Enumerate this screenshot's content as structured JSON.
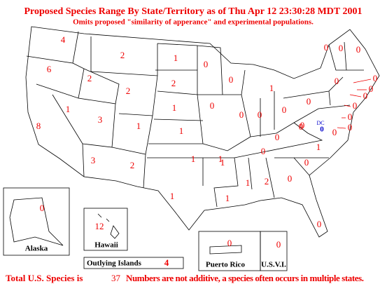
{
  "title": "Proposed Species Range By State/Territory as of Thu Apr 12 23:30:28 MDT 2001",
  "subtitle": "Omits proposed \"similarity of apperance\" and experimental populations.",
  "states": [
    4,
    6,
    2,
    2,
    2,
    1,
    2,
    0,
    0,
    1,
    1,
    8,
    3,
    1,
    1,
    1,
    0,
    0,
    0,
    0,
    1,
    3,
    2,
    1,
    1,
    1,
    1,
    1,
    2,
    0,
    0,
    0,
    1,
    0,
    0,
    0,
    0,
    0,
    0,
    0,
    0,
    0,
    0,
    0,
    0,
    0,
    0,
    0,
    0
  ],
  "dc": {
    "label": "DC",
    "value": 0
  },
  "alaska": {
    "label": "Alaska",
    "value": 0
  },
  "hawaii": {
    "label": "Hawaii",
    "value": 12
  },
  "outlying": {
    "label": "Outlying Islands",
    "value": 4
  },
  "puerto_rico": {
    "label": "Puerto Rico",
    "value": 0
  },
  "usvi": {
    "label": "U.S.V.I.",
    "value": 0
  },
  "footer": {
    "text1": "Total U.S. Species is",
    "total": 37,
    "text2": "Numbers are not additive, a species often occurs in multiple states."
  }
}
